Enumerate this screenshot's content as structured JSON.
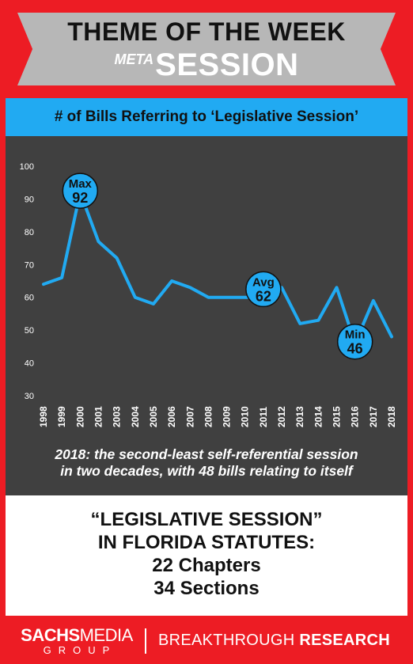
{
  "header": {
    "title": "THEME OF THE WEEK",
    "meta": "META",
    "session": "SESSION"
  },
  "chart_title": "# of Bills Referring to ‘Legislative Session’",
  "chart_data": {
    "type": "line",
    "x": [
      "1998",
      "1999",
      "2000",
      "2001",
      "2003",
      "2004",
      "2005",
      "2006",
      "2007",
      "2008",
      "2009",
      "2010",
      "2011",
      "2012",
      "2013",
      "2014",
      "2015",
      "2016",
      "2017",
      "2018"
    ],
    "series": [
      {
        "values": [
          64,
          66,
          92,
          77,
          72,
          60,
          58,
          65,
          63,
          60,
          60,
          60,
          60,
          63,
          52,
          53,
          63,
          46,
          59,
          48
        ]
      }
    ],
    "ylim": [
      30,
      100
    ],
    "yticks": [
      30,
      40,
      50,
      60,
      70,
      80,
      90,
      100
    ],
    "grid": false,
    "color": "#21aaf2",
    "annotations": [
      {
        "label": "Max",
        "value": "92",
        "x": "2000",
        "y": 92
      },
      {
        "label": "Avg",
        "value": "62",
        "x": "2011",
        "y": 62
      },
      {
        "label": "Min",
        "value": "46",
        "x": "2016",
        "y": 46
      }
    ]
  },
  "caption": {
    "line1": "2018: the second-least self-referential session",
    "line2": "in two decades, with 48 bills relating to itself"
  },
  "facts": {
    "line1": "“LEGISLATIVE SESSION”",
    "line2": "IN FLORIDA STATUTES:",
    "line3": "22 Chapters",
    "line4": "34 Sections"
  },
  "footer": {
    "brand_a": "SACHS",
    "brand_b": "MEDIA",
    "brand_sub": "GROUP",
    "tag_a": "BREAKTHROUGH ",
    "tag_b": "RESEARCH"
  }
}
